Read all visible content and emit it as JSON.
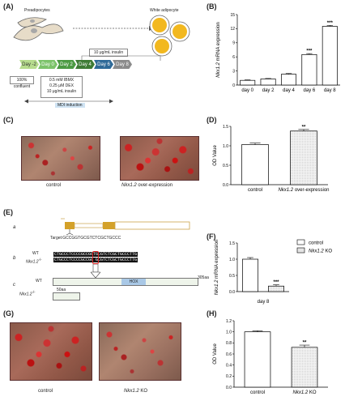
{
  "panels": {
    "A": "(A)",
    "B": "(B)",
    "C": "(C)",
    "D": "(D)",
    "E": "(E)",
    "F": "(F)",
    "G": "(G)",
    "H": "(H)"
  },
  "schematic": {
    "preadipocytes": "Preadipocytes",
    "white_adipocyte": "White adipocyte",
    "days": [
      "Day -2",
      "Day 0",
      "Day 2",
      "Day 4",
      "Day 6",
      "Day 8"
    ],
    "day_colors": [
      "#b7dc8e",
      "#7cc36a",
      "#4c9a43",
      "#3e7b35",
      "#2f6a98",
      "#8b8b8b"
    ],
    "insulin_box": "10 μg/mL insulin",
    "confluent_box": "100% confluent",
    "mdi_box": [
      "0.5 mM IBMX",
      "0.25 μM DEX",
      "10 μg/mL insulin"
    ],
    "mdi_label": "MDI induction"
  },
  "micrographs_c": {
    "left": "control",
    "right_gene": "Nkx1.2",
    "right_suffix": " over-expression"
  },
  "micrographs_g": {
    "left": "control",
    "right_gene": "Nkx1.2",
    "right_suffix": " KO"
  },
  "gene_panel_e": {
    "a": "a",
    "b": "b",
    "c": "c",
    "target": "Target:GCCGGTGCGTCTCGCTGCCC",
    "wt": "WT",
    "ko": "Nkx1.2",
    "ko_sup": "-/-",
    "seq_wt": "CTGCCCTCCCCGCCGGTGCGTCTCGCTGCCCTTG",
    "seq_ko": "CTGCCCTCCCCGCCGG GCGTCTCGCTGCCCTTG",
    "hox": "HOX",
    "aa_wt": "305aa",
    "aa_ko": "50aa"
  },
  "chart_data": [
    {
      "panel": "B",
      "type": "bar",
      "categories": [
        "day 0",
        "day 2",
        "day 4",
        "day 6",
        "day 8"
      ],
      "values": [
        1.0,
        1.3,
        2.3,
        6.5,
        12.5
      ],
      "errors": [
        0.1,
        0.1,
        0.15,
        0.2,
        0.2
      ],
      "significance": [
        "",
        "",
        "",
        "***",
        "***"
      ],
      "ylabel_gene": "Nkx1.2",
      "ylabel_rest": " mRNA expression",
      "ylim": [
        0,
        15
      ],
      "yticks": [
        "0",
        "3",
        "6",
        "9",
        "12",
        "15"
      ]
    },
    {
      "panel": "D",
      "type": "bar",
      "categories": [
        "control",
        "Nkx1.2 over-expression"
      ],
      "values": [
        1.03,
        1.38
      ],
      "errors": [
        0.04,
        0.04
      ],
      "significance": [
        "",
        "**"
      ],
      "ylabel": "OD Value",
      "ylim": [
        0,
        1.5
      ],
      "yticks": [
        "0.0",
        "0.5",
        "1.0",
        "1.5"
      ]
    },
    {
      "panel": "F",
      "type": "bar",
      "categories": [
        "control",
        "Nkx1.2 KO"
      ],
      "values": [
        1.0,
        0.17
      ],
      "errors": [
        0.05,
        0.04
      ],
      "significance": [
        "",
        "***"
      ],
      "xlabel": "day 8",
      "ylabel_gene": "Nkx1.2",
      "ylabel_rest": " mRNA expression",
      "ylim": [
        0,
        1.5
      ],
      "yticks": [
        "0.0",
        "0.5",
        "1.0",
        "1.5"
      ],
      "legend": [
        "control",
        "Nkx1.2 KO"
      ]
    },
    {
      "panel": "H",
      "type": "bar",
      "categories": [
        "control",
        "Nkx1.2 KO"
      ],
      "values": [
        1.0,
        0.72
      ],
      "errors": [
        0.02,
        0.04
      ],
      "significance": [
        "",
        "**"
      ],
      "ylabel": "OD Value",
      "ylim": [
        0,
        1.2
      ],
      "yticks": [
        "0.0",
        "0.2",
        "0.4",
        "0.6",
        "0.8",
        "1.0",
        "1.2"
      ]
    }
  ]
}
